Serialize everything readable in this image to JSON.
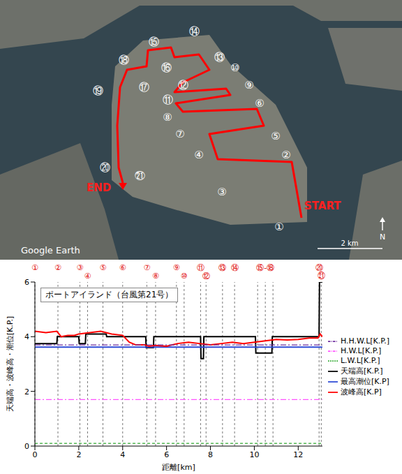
{
  "map": {
    "points": [
      "①",
      "②",
      "③",
      "④",
      "⑤",
      "⑥",
      "⑦",
      "⑧",
      "⑨",
      "⑩",
      "⑪",
      "⑫",
      "⑬",
      "⑭",
      "⑮",
      "⑯",
      "⑰",
      "⑱",
      "⑲",
      "⑳",
      "㉑"
    ],
    "start_label": "START",
    "end_label": "END",
    "attribution": "Google Earth",
    "scale_label": "2 km",
    "north_label": "N"
  },
  "chart_data": {
    "type": "line",
    "title": "ポートアイランド（台風第21号）",
    "x_label": "距離[km]",
    "y_label": "天端高・波峰高・潮位[K.P.]",
    "xlim": [
      0,
      13.1
    ],
    "xticks": [
      0,
      2,
      4,
      6,
      8,
      10,
      12
    ],
    "ylim": [
      0,
      6
    ],
    "yticks": [
      0,
      2,
      4,
      6
    ],
    "legend": "right",
    "grid": false,
    "markers": [
      {
        "x": 0,
        "label": "①"
      },
      {
        "x": 1.05,
        "label": "②"
      },
      {
        "x": 2.05,
        "label": "③"
      },
      {
        "x": 2.4,
        "label": "④"
      },
      {
        "x": 3.1,
        "label": "⑤"
      },
      {
        "x": 4.0,
        "label": "⑥"
      },
      {
        "x": 5.1,
        "label": "⑦"
      },
      {
        "x": 5.5,
        "label": "⑧"
      },
      {
        "x": 6.45,
        "label": "⑨"
      },
      {
        "x": 6.8,
        "label": "⑩"
      },
      {
        "x": 7.55,
        "label": "⑪"
      },
      {
        "x": 7.8,
        "label": "⑫"
      },
      {
        "x": 8.55,
        "label": "⑬"
      },
      {
        "x": 9.1,
        "label": "⑭"
      },
      {
        "x": 10.15,
        "label": null
      },
      {
        "x": 10.5,
        "label": "⑮-⑱"
      },
      {
        "x": 10.85,
        "label": null
      },
      {
        "x": 12.95,
        "label": "⑳"
      },
      {
        "x": 13.05,
        "label": "㉑"
      }
    ],
    "series": [
      {
        "name": "天端高[K.P.]",
        "color": "#000000",
        "line_style": "solid",
        "x": [
          0,
          1.0,
          1.02,
          2.0,
          2.02,
          2.3,
          2.32,
          3.25,
          3.27,
          5.05,
          5.07,
          5.4,
          5.42,
          7.55,
          7.57,
          7.68,
          7.7,
          10.05,
          10.07,
          10.8,
          10.82,
          12.95,
          12.97,
          13.1
        ],
        "values": [
          3.75,
          3.75,
          4.0,
          4.0,
          3.75,
          3.75,
          4.1,
          4.1,
          4.0,
          4.0,
          3.6,
          3.6,
          4.0,
          4.0,
          3.2,
          3.2,
          4.0,
          4.0,
          3.4,
          3.4,
          4.0,
          4.0,
          6.0,
          6.0
        ]
      },
      {
        "name": "最高潮位[K.P]",
        "color": "#2e4bd6",
        "line_style": "solid",
        "x": [
          0,
          13.1
        ],
        "values": [
          3.62,
          3.62
        ]
      },
      {
        "name": "波峰高[K.P]",
        "color": "#ff0000",
        "line_style": "solid",
        "x": [
          0,
          0.5,
          1.0,
          1.2,
          1.5,
          1.8,
          2.0,
          2.5,
          3.0,
          3.5,
          4.0,
          4.3,
          4.6,
          5.0,
          5.2,
          5.5,
          6.0,
          6.5,
          7.0,
          7.5,
          8.0,
          8.5,
          9.0,
          9.5,
          10.0,
          10.5,
          11.0,
          11.5,
          12.0,
          12.5,
          12.9,
          13.0,
          13.1
        ],
        "values": [
          4.2,
          4.15,
          4.2,
          4.0,
          4.05,
          4.05,
          4.1,
          4.15,
          4.2,
          4.1,
          4.05,
          3.8,
          3.7,
          3.7,
          3.65,
          3.68,
          3.65,
          3.75,
          3.8,
          3.75,
          3.7,
          3.75,
          3.8,
          3.75,
          3.8,
          3.85,
          3.9,
          3.88,
          3.9,
          3.95,
          3.95,
          4.1,
          4.0
        ]
      },
      {
        "name": "L.W.L[K.P.]",
        "color": "#33aa33",
        "line_style": "dashed",
        "x": [
          0,
          13.1
        ],
        "values": [
          0.1,
          0.1
        ]
      },
      {
        "name": "H.W.L[K.P.]",
        "color": "#ff55ff",
        "line_style": "dashdot",
        "x": [
          0,
          13.1
        ],
        "values": [
          1.7,
          1.7
        ]
      },
      {
        "name": "H.H.W.L[K.P.]",
        "color": "#7030a0",
        "line_style": "dashdot",
        "x": [
          0,
          13.1
        ],
        "values": [
          3.7,
          3.7
        ]
      }
    ]
  }
}
